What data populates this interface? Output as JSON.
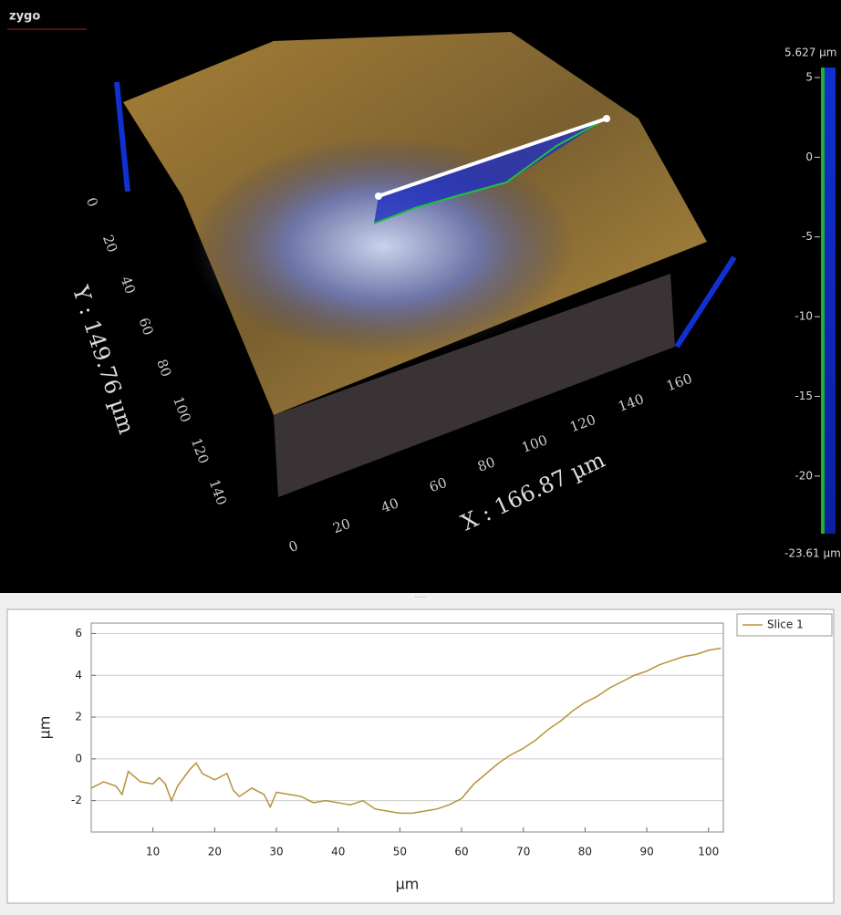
{
  "viewer": {
    "logo": "zygo",
    "y_axis_label": "Y : 149.76 µm",
    "x_axis_label": "X : 166.87 µm",
    "y_ticks": [
      0,
      20,
      40,
      60,
      80,
      100,
      120,
      140
    ],
    "x_ticks": [
      0,
      20,
      40,
      60,
      80,
      100,
      120,
      140,
      160
    ],
    "colorbar": {
      "max_label": "5.627 µm",
      "min_label": "-23.61 µm",
      "lim": [
        -23.61,
        5.627
      ],
      "ticks": [
        5,
        0,
        -5,
        -10,
        -15,
        -20
      ]
    }
  },
  "chart_data": {
    "type": "line",
    "x_label": "µm",
    "y_label": "µm",
    "x": [
      0,
      2,
      4,
      5,
      6,
      8,
      10,
      11,
      12,
      13,
      14,
      16,
      17,
      18,
      20,
      22,
      23,
      24,
      26,
      28,
      29,
      30,
      32,
      34,
      36,
      38,
      40,
      42,
      44,
      46,
      48,
      50,
      52,
      54,
      56,
      58,
      60,
      62,
      64,
      66,
      68,
      70,
      72,
      74,
      76,
      78,
      80,
      82,
      84,
      86,
      88,
      90,
      92,
      94,
      96,
      98,
      100,
      102
    ],
    "series": [
      {
        "name": "Slice 1",
        "color": "#b8923a",
        "values": [
          -1.4,
          -1.1,
          -1.3,
          -1.7,
          -0.6,
          -1.1,
          -1.2,
          -0.9,
          -1.2,
          -2.0,
          -1.3,
          -0.5,
          -0.2,
          -0.7,
          -1.0,
          -0.7,
          -1.5,
          -1.8,
          -1.4,
          -1.7,
          -2.3,
          -1.6,
          -1.7,
          -1.8,
          -2.1,
          -2.0,
          -2.1,
          -2.2,
          -2.0,
          -2.4,
          -2.5,
          -2.6,
          -2.6,
          -2.5,
          -2.4,
          -2.2,
          -1.9,
          -1.2,
          -0.7,
          -0.2,
          0.2,
          0.5,
          0.9,
          1.4,
          1.8,
          2.3,
          2.7,
          3.0,
          3.4,
          3.7,
          4.0,
          4.2,
          4.5,
          4.7,
          4.9,
          5.0,
          5.2,
          5.3
        ]
      }
    ],
    "xlim": [
      0,
      102.4
    ],
    "ylim": [
      -3.5,
      6.5
    ],
    "xticks": [
      10,
      20,
      30,
      40,
      50,
      60,
      70,
      80,
      90,
      100
    ],
    "yticks": [
      -2,
      0,
      2,
      4,
      6
    ],
    "grid": true,
    "legend": "top-right"
  }
}
